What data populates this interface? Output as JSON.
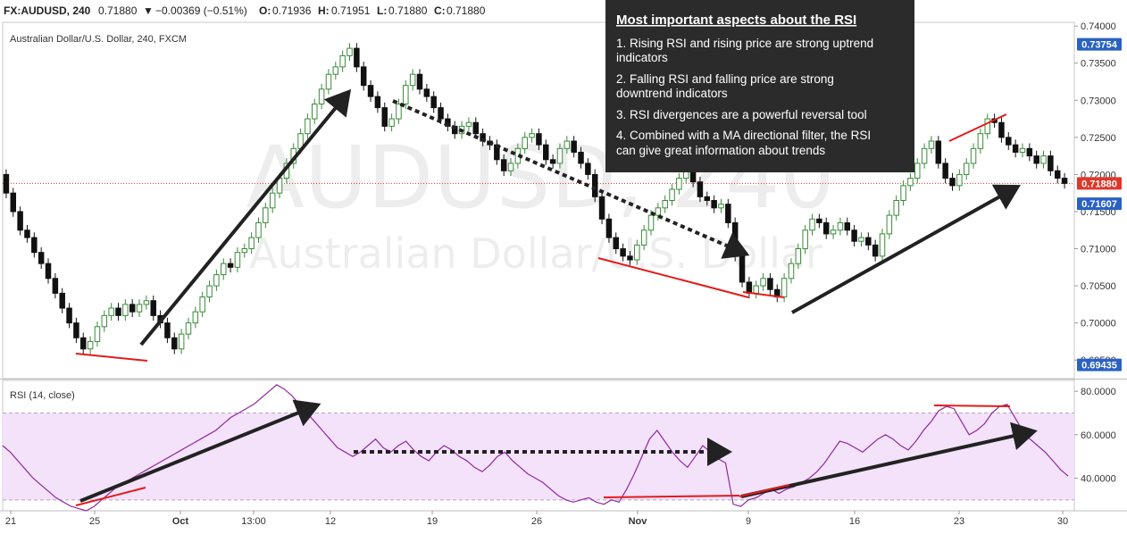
{
  "header": {
    "symbol": "FX:AUDUSD, 240",
    "last": "0.71880",
    "change": "−0.00369 (−0.51%)",
    "open_label": "O:",
    "open": "0.71936",
    "high_label": "H:",
    "high": "0.71951",
    "low_label": "L:",
    "low": "0.71880",
    "close_label": "C:",
    "close": "0.71880",
    "down_color": "#e03030"
  },
  "title": "Australian Dollar/U.S. Dollar, 240, FXCM",
  "watermark": {
    "line1": "AUDUSD, 240",
    "line2": "Australian Dollar/U.S. Dollar"
  },
  "info_box": {
    "title": "Most important aspects about the RSI",
    "items": [
      [
        "1. Rising RSI and rising price are strong uptrend",
        "indicators"
      ],
      [
        "2. Falling RSI and falling price are strong",
        "downtrend indicators"
      ],
      [
        "3. RSI divergences are a powerful reversal tool"
      ],
      [
        "4. Combined with a MA directional filter, the RSI",
        "can give great information about trends"
      ]
    ]
  },
  "price_badges": [
    {
      "label": "0.73754",
      "value": 0.73754
    },
    {
      "label": "0.71880",
      "value": 0.7188,
      "kind": "last"
    },
    {
      "label": "0.71607",
      "value": 0.71607
    },
    {
      "label": "0.69435",
      "value": 0.69435
    }
  ],
  "chart_data": [
    {
      "type": "candlestick",
      "title": "Australian Dollar/U.S. Dollar, 240, FXCM",
      "ylim": [
        0.6925,
        0.7405
      ],
      "yticks": [
        "0.74000",
        "0.73500",
        "0.73000",
        "0.72500",
        "0.72000",
        "0.71500",
        "0.71000",
        "0.70500",
        "0.70000",
        "0.69500"
      ],
      "x_labels": [
        "21",
        "25",
        "Oct",
        "13:00",
        "12",
        "19",
        "26",
        "Nov",
        "9",
        "16",
        "23",
        "30"
      ],
      "series": [
        {
          "values": [
            [
              0.72,
              0.7175
            ],
            [
              0.7175,
              0.715
            ],
            [
              0.715,
              0.7125
            ],
            [
              0.7125,
              0.7115
            ],
            [
              0.7115,
              0.7095
            ],
            [
              0.7095,
              0.708
            ],
            [
              0.708,
              0.706
            ],
            [
              0.706,
              0.704
            ],
            [
              0.704,
              0.702
            ],
            [
              0.702,
              0.7
            ],
            [
              0.7,
              0.698
            ],
            [
              0.698,
              0.6965
            ],
            [
              0.6965,
              0.6975
            ],
            [
              0.6975,
              0.6995
            ],
            [
              0.6995,
              0.701
            ],
            [
              0.701,
              0.702
            ],
            [
              0.702,
              0.701
            ],
            [
              0.701,
              0.7025
            ],
            [
              0.7025,
              0.7015
            ],
            [
              0.7015,
              0.7025
            ],
            [
              0.7025,
              0.703
            ],
            [
              0.703,
              0.701
            ],
            [
              0.701,
              0.7
            ],
            [
              0.7,
              0.698
            ],
            [
              0.698,
              0.6965
            ],
            [
              0.6965,
              0.6985
            ],
            [
              0.6985,
              0.7
            ],
            [
              0.7,
              0.7015
            ],
            [
              0.7015,
              0.7035
            ],
            [
              0.7035,
              0.705
            ],
            [
              0.705,
              0.7065
            ],
            [
              0.7065,
              0.708
            ],
            [
              0.708,
              0.7075
            ],
            [
              0.7075,
              0.7095
            ],
            [
              0.7095,
              0.71
            ],
            [
              0.71,
              0.7115
            ],
            [
              0.7115,
              0.7135
            ],
            [
              0.7135,
              0.7155
            ],
            [
              0.7155,
              0.7175
            ],
            [
              0.7175,
              0.7195
            ],
            [
              0.7195,
              0.7215
            ],
            [
              0.7215,
              0.7235
            ],
            [
              0.7235,
              0.7255
            ],
            [
              0.7255,
              0.7275
            ],
            [
              0.7275,
              0.7295
            ],
            [
              0.7295,
              0.7315
            ],
            [
              0.7315,
              0.7335
            ],
            [
              0.7335,
              0.7345
            ],
            [
              0.7345,
              0.736
            ],
            [
              0.736,
              0.737
            ],
            [
              0.737,
              0.7345
            ],
            [
              0.7345,
              0.732
            ],
            [
              0.732,
              0.7305
            ],
            [
              0.7305,
              0.729
            ],
            [
              0.729,
              0.7265
            ],
            [
              0.7265,
              0.7275
            ],
            [
              0.7275,
              0.7295
            ],
            [
              0.7295,
              0.732
            ],
            [
              0.732,
              0.7335
            ],
            [
              0.7335,
              0.7315
            ],
            [
              0.7315,
              0.7305
            ],
            [
              0.7305,
              0.729
            ],
            [
              0.729,
              0.7275
            ],
            [
              0.7275,
              0.7265
            ],
            [
              0.7265,
              0.7255
            ],
            [
              0.7255,
              0.7265
            ],
            [
              0.7265,
              0.727
            ],
            [
              0.727,
              0.7255
            ],
            [
              0.7255,
              0.7245
            ],
            [
              0.7245,
              0.724
            ],
            [
              0.724,
              0.722
            ],
            [
              0.722,
              0.7205
            ],
            [
              0.7205,
              0.7215
            ],
            [
              0.7215,
              0.7235
            ],
            [
              0.7235,
              0.725
            ],
            [
              0.725,
              0.7255
            ],
            [
              0.7255,
              0.724
            ],
            [
              0.724,
              0.722
            ],
            [
              0.722,
              0.7215
            ],
            [
              0.7215,
              0.7235
            ],
            [
              0.7235,
              0.7245
            ],
            [
              0.7245,
              0.723
            ],
            [
              0.723,
              0.7215
            ],
            [
              0.7215,
              0.72
            ],
            [
              0.72,
              0.717
            ],
            [
              0.717,
              0.714
            ],
            [
              0.714,
              0.7115
            ],
            [
              0.7115,
              0.71
            ],
            [
              0.71,
              0.709
            ],
            [
              0.709,
              0.7085
            ],
            [
              0.7085,
              0.7105
            ],
            [
              0.7105,
              0.7125
            ],
            [
              0.7125,
              0.7145
            ],
            [
              0.7145,
              0.7155
            ],
            [
              0.7155,
              0.7165
            ],
            [
              0.7165,
              0.718
            ],
            [
              0.718,
              0.7195
            ],
            [
              0.7195,
              0.721
            ],
            [
              0.721,
              0.719
            ],
            [
              0.719,
              0.717
            ],
            [
              0.717,
              0.7165
            ],
            [
              0.7165,
              0.7155
            ],
            [
              0.7155,
              0.716
            ],
            [
              0.716,
              0.7135
            ],
            [
              0.7135,
              0.709
            ],
            [
              0.709,
              0.7055
            ],
            [
              0.7055,
              0.704
            ],
            [
              0.704,
              0.705
            ],
            [
              0.705,
              0.706
            ],
            [
              0.706,
              0.7045
            ],
            [
              0.7045,
              0.7035
            ],
            [
              0.7035,
              0.706
            ],
            [
              0.706,
              0.708
            ],
            [
              0.708,
              0.71
            ],
            [
              0.71,
              0.7125
            ],
            [
              0.7125,
              0.714
            ],
            [
              0.714,
              0.7135
            ],
            [
              0.7135,
              0.712
            ],
            [
              0.712,
              0.7125
            ],
            [
              0.7125,
              0.7135
            ],
            [
              0.7135,
              0.7125
            ],
            [
              0.7125,
              0.711
            ],
            [
              0.711,
              0.7115
            ],
            [
              0.7115,
              0.7105
            ],
            [
              0.7105,
              0.709
            ],
            [
              0.709,
              0.712
            ],
            [
              0.712,
              0.7145
            ],
            [
              0.7145,
              0.7165
            ],
            [
              0.7165,
              0.7185
            ],
            [
              0.7185,
              0.7195
            ],
            [
              0.7195,
              0.7215
            ],
            [
              0.7215,
              0.7235
            ],
            [
              0.7235,
              0.7245
            ],
            [
              0.7245,
              0.7215
            ],
            [
              0.7215,
              0.7195
            ],
            [
              0.7195,
              0.7185
            ],
            [
              0.7185,
              0.72
            ],
            [
              0.72,
              0.7215
            ],
            [
              0.7215,
              0.7235
            ],
            [
              0.7235,
              0.7255
            ],
            [
              0.7255,
              0.7275
            ],
            [
              0.7275,
              0.727
            ],
            [
              0.727,
              0.725
            ],
            [
              0.725,
              0.724
            ],
            [
              0.724,
              0.723
            ],
            [
              0.723,
              0.7235
            ],
            [
              0.7235,
              0.7225
            ],
            [
              0.7225,
              0.7215
            ],
            [
              0.7215,
              0.7225
            ],
            [
              0.7225,
              0.7205
            ],
            [
              0.7205,
              0.7195
            ],
            [
              0.7195,
              0.7188
            ]
          ]
        }
      ]
    },
    {
      "type": "line",
      "title": "RSI (14, close)",
      "ylim": [
        25,
        85
      ],
      "yticks": [
        "80.0000",
        "60.0000",
        "40.0000"
      ],
      "bands": [
        30,
        70
      ],
      "series": [
        {
          "values": [
            55,
            52,
            48,
            44,
            40,
            37,
            34,
            31,
            29,
            27,
            26,
            25,
            27,
            30,
            33,
            36,
            38,
            40,
            42,
            44,
            46,
            48,
            50,
            52,
            54,
            56,
            58,
            60,
            62,
            65,
            68,
            70,
            72,
            74,
            77,
            80,
            83,
            81,
            78,
            74,
            70,
            66,
            62,
            58,
            54,
            52,
            50,
            52,
            55,
            58,
            54,
            52,
            55,
            57,
            53,
            50,
            48,
            52,
            55,
            53,
            50,
            48,
            45,
            43,
            46,
            50,
            52,
            48,
            45,
            42,
            40,
            38,
            35,
            32,
            30,
            29,
            30,
            31,
            29,
            28,
            30,
            29,
            35,
            42,
            50,
            58,
            62,
            57,
            52,
            48,
            45,
            50,
            55,
            52,
            49,
            47,
            28,
            27,
            30,
            31,
            33,
            35,
            33,
            35,
            36,
            38,
            40,
            43,
            47,
            52,
            57,
            56,
            54,
            52,
            55,
            58,
            60,
            58,
            55,
            53,
            57,
            62,
            66,
            71,
            73,
            72,
            66,
            60,
            62,
            65,
            70,
            73,
            74,
            68,
            62,
            58,
            55,
            52,
            48,
            44,
            41
          ],
          "color": "#8e2a9c"
        }
      ]
    }
  ],
  "annotation_colors": {
    "trend_arrow": "#222222",
    "divergence_line": "#e21b1b"
  },
  "colors": {
    "bull": "#3a8a3a",
    "bear": "#111111",
    "rsi": "#8e2a9c",
    "rsi_band": "#f3e2fa",
    "badge": "#2962c4",
    "badge_last": "#e0362a"
  }
}
